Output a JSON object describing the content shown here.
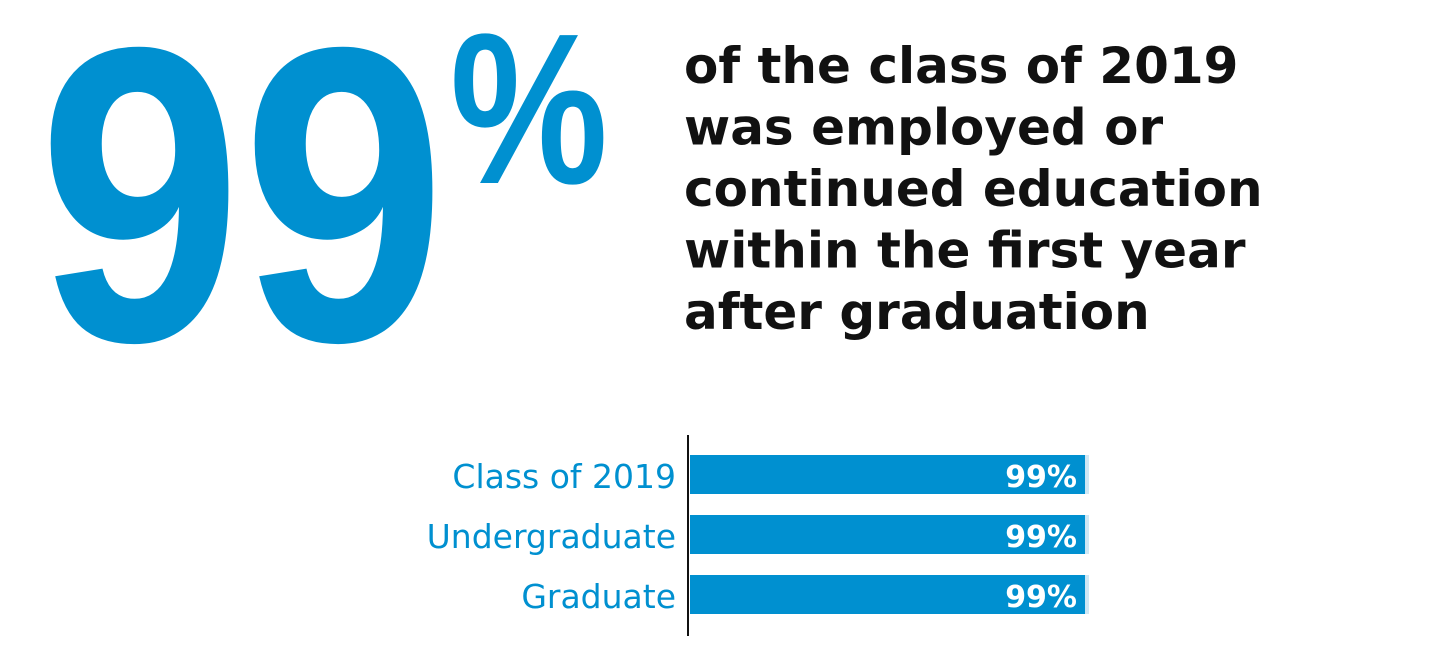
{
  "headline": {
    "number": "99",
    "unit": "%"
  },
  "statement": [
    "of the class of 2019",
    "was employed or",
    "continued education",
    "within the first year",
    "after graduation"
  ],
  "chart_data": {
    "type": "hbar",
    "categories": [
      "Class of 2019",
      "Undergraduate",
      "Graduate"
    ],
    "values": [
      99,
      99,
      99
    ],
    "value_labels": [
      "99%",
      "99%",
      "99%"
    ],
    "color": "#0090d0",
    "xlim": [
      0,
      100
    ]
  }
}
